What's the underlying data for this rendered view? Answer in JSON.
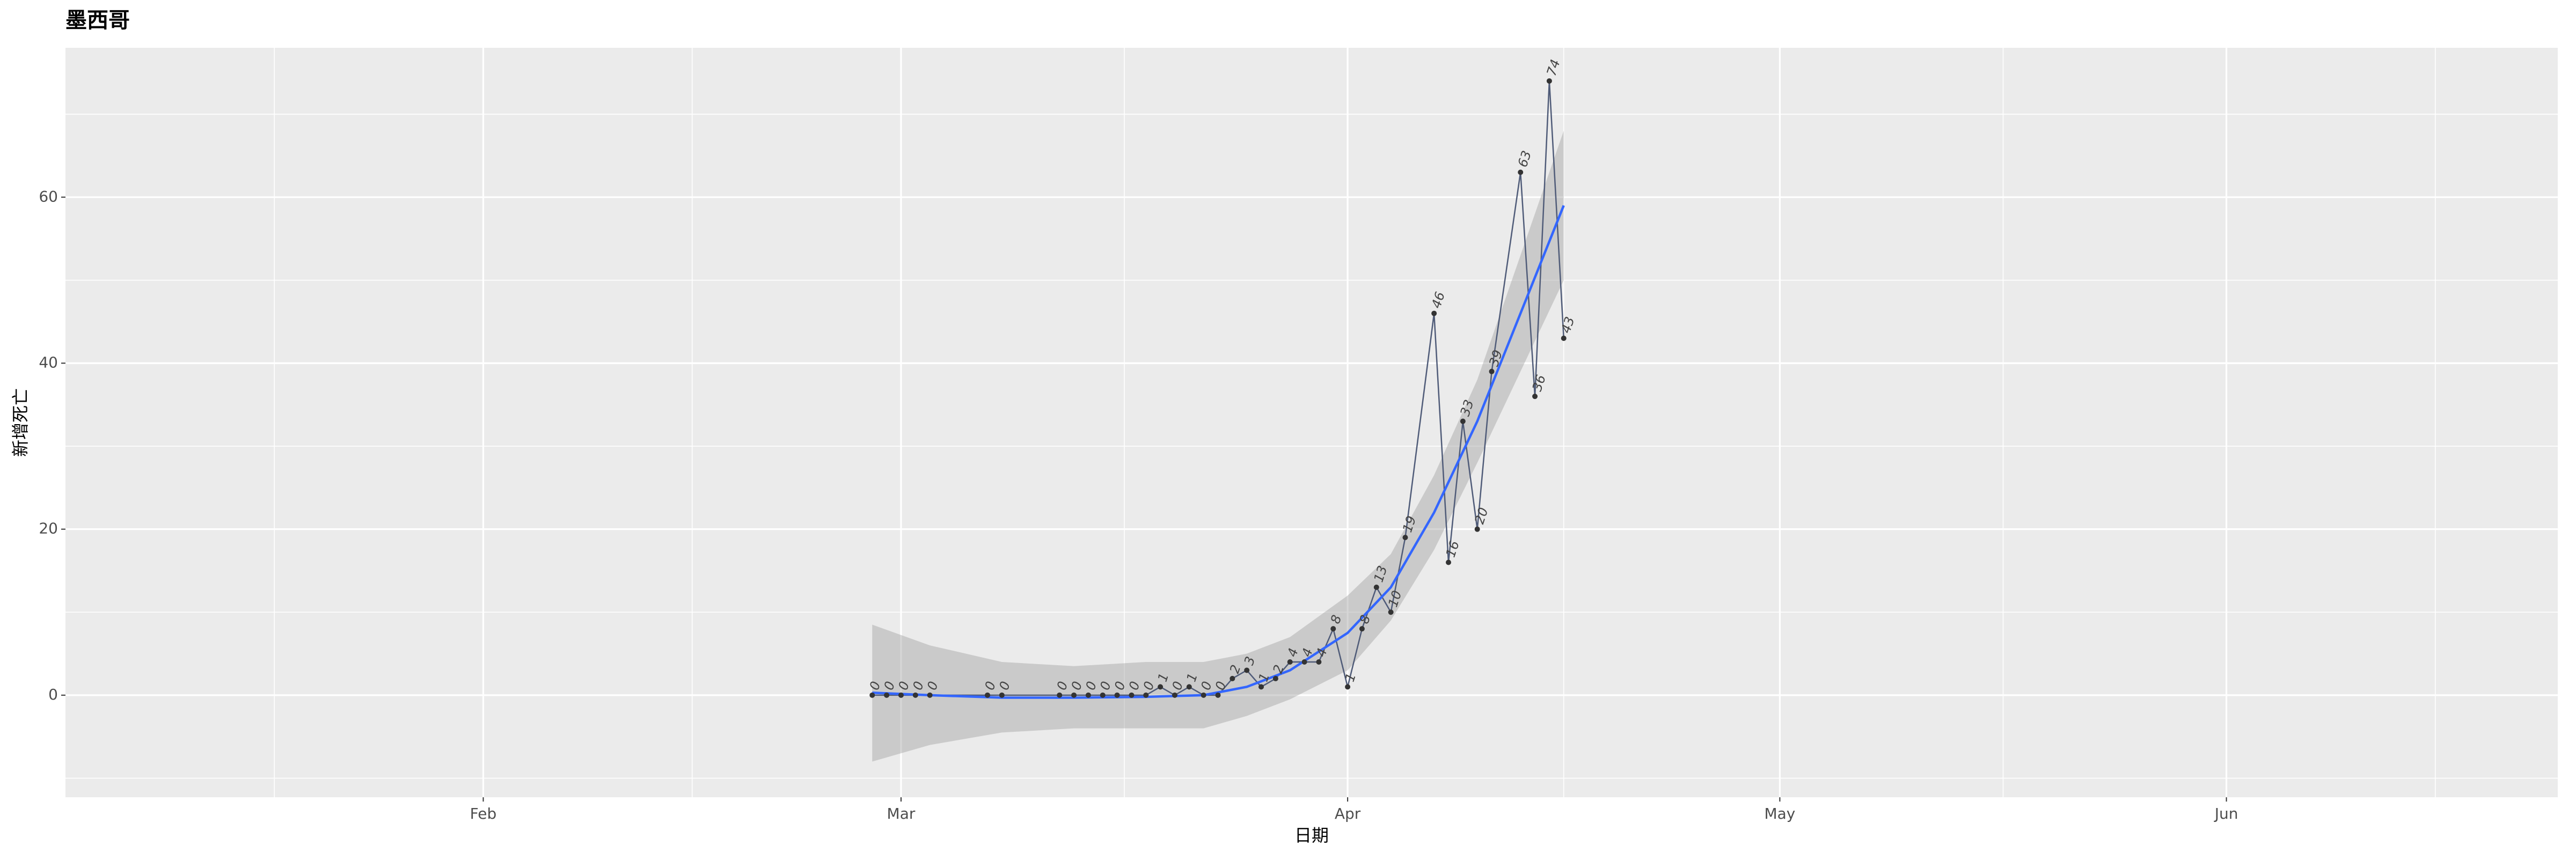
{
  "chart_data": {
    "type": "line",
    "title": "墨西哥",
    "x_label": "日期",
    "y_label": "新增死亡",
    "x": [
      "02-28",
      "02-29",
      "03-01",
      "03-02",
      "03-03",
      "03-07",
      "03-08",
      "03-12",
      "03-13",
      "03-14",
      "03-15",
      "03-16",
      "03-17",
      "03-18",
      "03-19",
      "03-20",
      "03-21",
      "03-22",
      "03-23",
      "03-24",
      "03-25",
      "03-26",
      "03-27",
      "03-28",
      "03-29",
      "03-30",
      "03-31",
      "04-01",
      "04-02",
      "04-03",
      "04-04",
      "04-05",
      "04-07",
      "04-08",
      "04-09",
      "04-10",
      "04-11",
      "04-13",
      "04-14",
      "04-15",
      "04-16"
    ],
    "values": [
      0,
      0,
      0,
      0,
      0,
      0,
      0,
      0,
      0,
      0,
      0,
      0,
      0,
      0,
      1,
      0,
      1,
      0,
      0,
      2,
      3,
      1,
      2,
      4,
      4,
      4,
      8,
      1,
      8,
      13,
      10,
      19,
      46,
      16,
      33,
      20,
      39,
      63,
      36,
      74,
      43
    ],
    "color": "#4f5b78",
    "smooth": {
      "x": [
        "02-28",
        "03-03",
        "03-08",
        "03-13",
        "03-18",
        "03-22",
        "03-25",
        "03-28",
        "04-01",
        "04-04",
        "04-07",
        "04-10",
        "04-13",
        "04-16"
      ],
      "values": [
        0.3,
        0,
        -0.3,
        -0.3,
        -0.2,
        0,
        1,
        3,
        7.5,
        13,
        22,
        33,
        46,
        59
      ],
      "lower": [
        -8,
        -6,
        -4.5,
        -4,
        -4,
        -4,
        -2.5,
        -0.5,
        3,
        9,
        17.5,
        28,
        39,
        50
      ],
      "upper": [
        8.5,
        6,
        4,
        3.5,
        4,
        4,
        5,
        7,
        12,
        17,
        26.5,
        38,
        53,
        68
      ],
      "color": "#3366ff"
    },
    "xlim": [
      "01-03",
      "06-24"
    ],
    "xticks": [
      {
        "value": "02-01",
        "label": "Feb"
      },
      {
        "value": "03-01",
        "label": "Mar"
      },
      {
        "value": "04-01",
        "label": "Apr"
      },
      {
        "value": "05-01",
        "label": "May"
      },
      {
        "value": "06-01",
        "label": "Jun"
      }
    ],
    "ylim": [
      -12.3,
      78
    ],
    "yticks": [
      0,
      20,
      40,
      60
    ],
    "grid": true
  }
}
